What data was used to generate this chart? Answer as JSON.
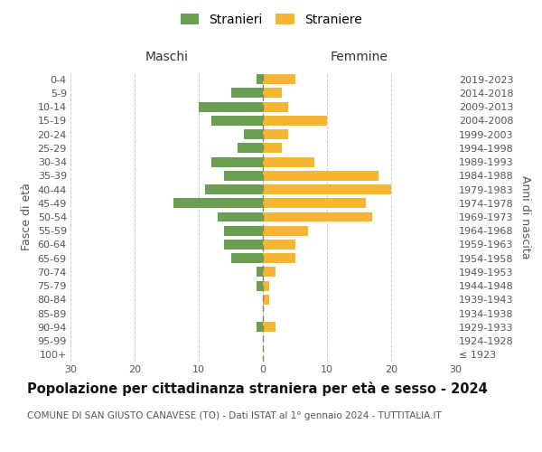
{
  "age_groups": [
    "100+",
    "95-99",
    "90-94",
    "85-89",
    "80-84",
    "75-79",
    "70-74",
    "65-69",
    "60-64",
    "55-59",
    "50-54",
    "45-49",
    "40-44",
    "35-39",
    "30-34",
    "25-29",
    "20-24",
    "15-19",
    "10-14",
    "5-9",
    "0-4"
  ],
  "birth_years": [
    "≤ 1923",
    "1924-1928",
    "1929-1933",
    "1934-1938",
    "1939-1943",
    "1944-1948",
    "1949-1953",
    "1954-1958",
    "1959-1963",
    "1964-1968",
    "1969-1973",
    "1974-1978",
    "1979-1983",
    "1984-1988",
    "1989-1993",
    "1994-1998",
    "1999-2003",
    "2004-2008",
    "2009-2013",
    "2014-2018",
    "2019-2023"
  ],
  "males": [
    0,
    0,
    1,
    0,
    0,
    1,
    1,
    5,
    6,
    6,
    7,
    14,
    9,
    6,
    8,
    4,
    3,
    8,
    10,
    5,
    1
  ],
  "females": [
    0,
    0,
    2,
    0,
    1,
    1,
    2,
    5,
    5,
    7,
    17,
    16,
    20,
    18,
    8,
    3,
    4,
    10,
    4,
    3,
    5
  ],
  "male_color": "#6a9e52",
  "female_color": "#f5b731",
  "xlim": 30,
  "title": "Popolazione per cittadinanza straniera per età e sesso - 2024",
  "subtitle": "COMUNE DI SAN GIUSTO CANAVESE (TO) - Dati ISTAT al 1° gennaio 2024 - TUTTITALIA.IT",
  "label_maschi": "Maschi",
  "label_femmine": "Femmine",
  "ylabel_left": "Fasce di età",
  "ylabel_right": "Anni di nascita",
  "legend_male": "Stranieri",
  "legend_female": "Straniere",
  "bg_color": "#ffffff",
  "grid_color": "#cccccc",
  "title_fontsize": 10.5,
  "subtitle_fontsize": 7.5,
  "label_fontsize": 9,
  "tick_fontsize": 8
}
